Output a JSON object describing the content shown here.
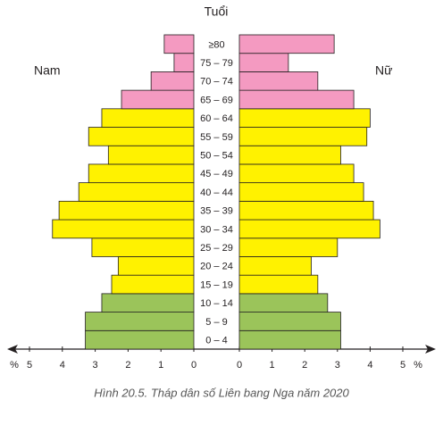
{
  "chart_data": {
    "type": "pyramid",
    "y_label": "Tuổi",
    "caption": "Hình 20.5. Tháp dân số Liên bang Nga năm 2020",
    "x_unit": "%",
    "categories": [
      "0 – 4",
      "5 – 9",
      "10 – 14",
      "15 – 19",
      "20 – 24",
      "25 – 29",
      "30 – 34",
      "35 – 39",
      "40 – 44",
      "45 – 49",
      "50 – 54",
      "55 – 59",
      "60 – 64",
      "65 – 69",
      "70 – 74",
      "75 – 79",
      "≥80"
    ],
    "colors": [
      "#9bc45a",
      "#9bc45a",
      "#9bc45a",
      "#fff200",
      "#fff200",
      "#fff200",
      "#fff200",
      "#fff200",
      "#fff200",
      "#fff200",
      "#fff200",
      "#fff200",
      "#fff200",
      "#f49ac1",
      "#f49ac1",
      "#f49ac1",
      "#f49ac1"
    ],
    "series": [
      {
        "name": "Nam",
        "values": [
          3.3,
          3.3,
          2.8,
          2.5,
          2.3,
          3.1,
          4.3,
          4.1,
          3.5,
          3.2,
          2.6,
          3.2,
          2.8,
          2.2,
          1.3,
          0.6,
          0.9
        ]
      },
      {
        "name": "Nữ",
        "values": [
          3.1,
          3.1,
          2.7,
          2.4,
          2.2,
          3.0,
          4.3,
          4.1,
          3.8,
          3.5,
          3.1,
          3.9,
          4.0,
          3.5,
          2.4,
          1.5,
          2.9
        ]
      }
    ],
    "xlim": [
      0,
      5
    ],
    "xticks": [
      0,
      1,
      2,
      3,
      4,
      5
    ]
  }
}
